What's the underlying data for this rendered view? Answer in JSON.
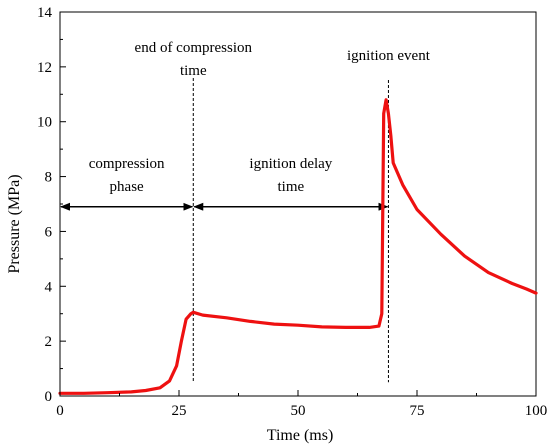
{
  "chart_data": {
    "type": "line",
    "title": "",
    "xlabel": "Time (ms)",
    "ylabel": "Pressure (MPa)",
    "xlim": [
      0,
      100
    ],
    "ylim": [
      0,
      14
    ],
    "xticks": [
      0,
      25,
      50,
      75,
      100
    ],
    "yticks": [
      0,
      2,
      4,
      6,
      8,
      10,
      12,
      14
    ],
    "grid": false,
    "series": [
      {
        "color": "#ee1111",
        "x": [
          0,
          5,
          10,
          15,
          18,
          21,
          23,
          24.5,
          25.5,
          26.5,
          27.5,
          28,
          30,
          35,
          40,
          45,
          50,
          55,
          60,
          65,
          67,
          67.6,
          68,
          68.5,
          69,
          69.5,
          70,
          72,
          75,
          80,
          85,
          90,
          95,
          98,
          100
        ],
        "y": [
          0.1,
          0.1,
          0.12,
          0.15,
          0.2,
          0.3,
          0.55,
          1.1,
          2.0,
          2.8,
          3.0,
          3.05,
          2.95,
          2.85,
          2.72,
          2.62,
          2.58,
          2.52,
          2.5,
          2.5,
          2.55,
          3.0,
          10.3,
          10.8,
          10.3,
          9.5,
          8.5,
          7.7,
          6.8,
          5.9,
          5.1,
          4.5,
          4.1,
          3.9,
          3.75
        ]
      }
    ],
    "markers": [
      {
        "x": 28,
        "label_lines": [
          "end of compression",
          "time"
        ]
      },
      {
        "x": 69,
        "label_lines": [
          "ignition event"
        ]
      }
    ],
    "phases": [
      {
        "from": 0,
        "to": 28,
        "y": 6.9,
        "label_lines": [
          "compression",
          "phase"
        ]
      },
      {
        "from": 28,
        "to": 69,
        "y": 6.9,
        "label_lines": [
          "ignition delay",
          "time"
        ]
      }
    ]
  }
}
